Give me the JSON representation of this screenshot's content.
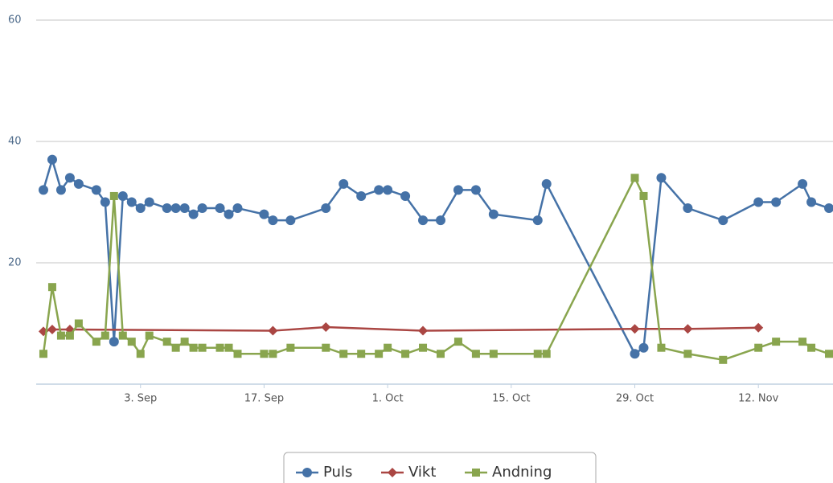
{
  "chart_data": {
    "type": "line",
    "xlim": [
      "08-22",
      "11-21"
    ],
    "xticks": [
      {
        "value": "09-03",
        "label": "3. Sep"
      },
      {
        "value": "09-17",
        "label": "17. Sep"
      },
      {
        "value": "10-01",
        "label": "1. Oct"
      },
      {
        "value": "10-15",
        "label": "15. Oct"
      },
      {
        "value": "10-29",
        "label": "29. Oct"
      },
      {
        "value": "11-12",
        "label": "12. Nov"
      }
    ],
    "ylim": [
      0,
      60
    ],
    "yticks": [
      20,
      40,
      60
    ],
    "grid": true,
    "legend": "bottom",
    "series": [
      {
        "name": "Puls",
        "color": "#4572a7",
        "marker": "circle",
        "x": [
          "08-23",
          "08-24",
          "08-25",
          "08-26",
          "08-27",
          "08-29",
          "08-30",
          "08-31",
          "09-01",
          "09-02",
          "09-03",
          "09-04",
          "09-06",
          "09-07",
          "09-08",
          "09-09",
          "09-10",
          "09-12",
          "09-13",
          "09-14",
          "09-17",
          "09-18",
          "09-20",
          "09-24",
          "09-26",
          "09-28",
          "09-30",
          "10-01",
          "10-03",
          "10-05",
          "10-07",
          "10-09",
          "10-11",
          "10-13",
          "10-18",
          "10-19",
          "10-29",
          "10-30",
          "11-01",
          "11-04",
          "11-08",
          "11-12",
          "11-14",
          "11-17",
          "11-18",
          "11-20"
        ],
        "values": [
          32,
          37,
          32,
          34,
          33,
          32,
          30,
          7,
          31,
          30,
          29,
          30,
          29,
          29,
          29,
          28,
          29,
          29,
          28,
          29,
          28,
          27,
          27,
          29,
          33,
          31,
          32,
          32,
          31,
          27,
          27,
          32,
          32,
          28,
          27,
          33,
          5,
          6,
          34,
          29,
          27,
          30,
          30,
          33,
          30,
          29
        ]
      },
      {
        "name": "Vikt",
        "color": "#aa4643",
        "marker": "diamond",
        "x": [
          "08-23",
          "08-24",
          "08-26",
          "09-18",
          "09-24",
          "10-05",
          "10-29",
          "11-04",
          "11-12"
        ],
        "values": [
          8.7,
          9,
          9,
          8.8,
          9.4,
          8.8,
          9.1,
          9.1,
          9.3
        ]
      },
      {
        "name": "Andning",
        "color": "#89a54e",
        "marker": "square",
        "x": [
          "08-23",
          "08-24",
          "08-25",
          "08-26",
          "08-27",
          "08-29",
          "08-30",
          "08-31",
          "09-01",
          "09-02",
          "09-03",
          "09-04",
          "09-06",
          "09-07",
          "09-08",
          "09-09",
          "09-10",
          "09-12",
          "09-13",
          "09-14",
          "09-17",
          "09-18",
          "09-20",
          "09-24",
          "09-26",
          "09-28",
          "09-30",
          "10-01",
          "10-03",
          "10-05",
          "10-07",
          "10-09",
          "10-11",
          "10-13",
          "10-18",
          "10-19",
          "10-29",
          "10-30",
          "11-01",
          "11-04",
          "11-08",
          "11-12",
          "11-14",
          "11-17",
          "11-18",
          "11-20"
        ],
        "values": [
          5,
          16,
          8,
          8,
          10,
          7,
          8,
          31,
          8,
          7,
          5,
          8,
          7,
          6,
          7,
          6,
          6,
          6,
          6,
          5,
          5,
          5,
          6,
          6,
          5,
          5,
          5,
          6,
          5,
          6,
          5,
          7,
          5,
          5,
          5,
          5,
          34,
          31,
          6,
          5,
          4,
          6,
          7,
          7,
          6,
          5
        ]
      }
    ]
  }
}
